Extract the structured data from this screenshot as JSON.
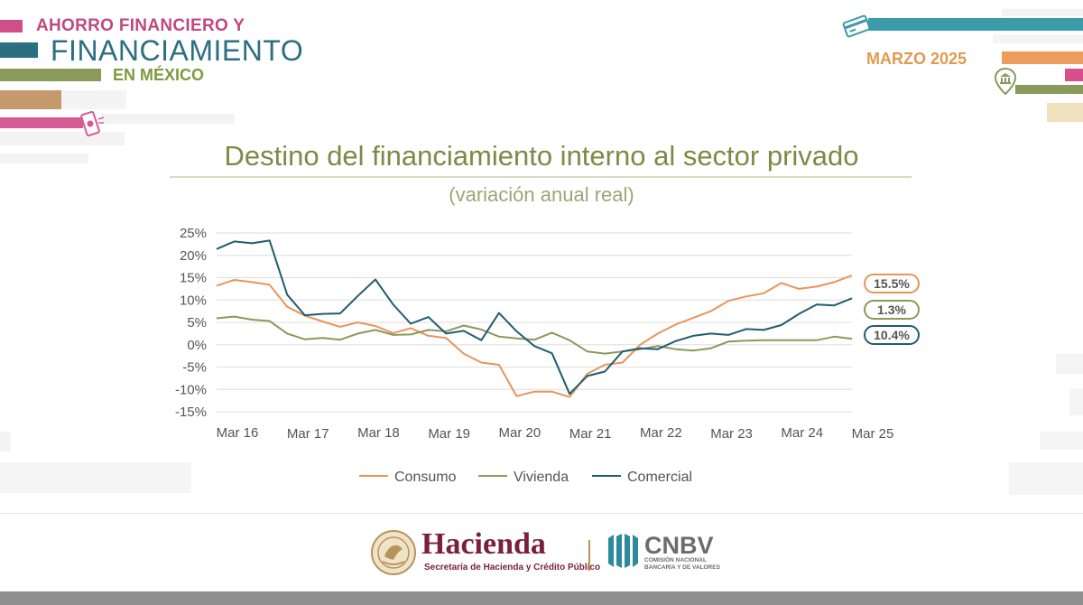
{
  "header": {
    "line1": "AHORRO FINANCIERO Y",
    "line2": "FINANCIAMIENTO",
    "line3": "EN MÉXICO",
    "date": "MARZO 2025"
  },
  "chart_data": {
    "type": "line",
    "title": "Destino del financiamiento interno al sector privado",
    "subtitle": "(variación anual real)",
    "xlabel": "",
    "ylabel": "",
    "ylim": [
      -15,
      25
    ],
    "yticks": [
      25,
      20,
      15,
      10,
      5,
      0,
      -5,
      -10,
      -15
    ],
    "ytick_labels": [
      "25%",
      "20%",
      "15%",
      "10%",
      "5%",
      "0%",
      "-5%",
      "-10%",
      "-15%"
    ],
    "xtick_labels": [
      "Mar 16",
      "Mar 17",
      "Mar 18",
      "Mar 19",
      "Mar 20",
      "Mar 21",
      "Mar 22",
      "Mar 23",
      "Mar 24",
      "Mar 25"
    ],
    "x_period": "quarterly",
    "grid": "horizontal",
    "legend": "bottom",
    "series": [
      {
        "name": "Consumo",
        "color": "#e8955a",
        "end_label": "15.5%",
        "values": [
          13.2,
          14.5,
          14.0,
          13.4,
          8.5,
          6.5,
          5.2,
          4.0,
          5.0,
          4.2,
          2.6,
          3.7,
          2.0,
          1.5,
          -2.0,
          -4.0,
          -4.5,
          -11.5,
          -10.5,
          -10.5,
          -11.7,
          -6.5,
          -4.5,
          -4.0,
          0.0,
          2.5,
          4.5,
          6.0,
          7.5,
          9.8,
          10.8,
          11.5,
          13.8,
          12.5,
          13.0,
          14.0,
          15.5
        ]
      },
      {
        "name": "Vivienda",
        "color": "#8a9a5b",
        "end_label": "1.3%",
        "values": [
          5.9,
          6.3,
          5.6,
          5.3,
          2.5,
          1.2,
          1.5,
          1.1,
          2.5,
          3.3,
          2.2,
          2.3,
          3.3,
          3.0,
          4.3,
          3.4,
          1.8,
          1.4,
          1.1,
          2.7,
          1.0,
          -1.5,
          -2.0,
          -1.5,
          -1.0,
          -0.3,
          -1.0,
          -1.3,
          -0.8,
          0.7,
          0.9,
          1.0,
          1.0,
          1.0,
          1.0,
          1.8,
          1.3
        ]
      },
      {
        "name": "Comercial",
        "color": "#205d71",
        "end_label": "10.4%",
        "values": [
          21.4,
          23.1,
          22.7,
          23.3,
          11.2,
          6.6,
          6.9,
          7.0,
          10.9,
          14.6,
          9.0,
          4.7,
          6.2,
          2.5,
          3.1,
          1.0,
          7.1,
          3.0,
          -0.3,
          -1.9,
          -11.0,
          -7.0,
          -6.0,
          -1.5,
          -0.8,
          -1.0,
          0.8,
          2.0,
          2.5,
          2.2,
          3.5,
          3.3,
          4.4,
          6.9,
          9.0,
          8.8,
          10.4
        ]
      }
    ]
  },
  "footer": {
    "hacienda_name": "Hacienda",
    "hacienda_sub": "Secretaría de Hacienda y Crédito Público",
    "cnbv_name": "CNBV",
    "cnbv_sub1": "COMISIÓN NACIONAL",
    "cnbv_sub2": "BANCARIA Y DE VALORES"
  },
  "icons": {
    "card": "credit-card-icon",
    "phone": "mobile-phone-icon",
    "bank": "bank-pin-icon",
    "seal": "national-seal-icon",
    "cnbv_mark": "cnbv-logo-icon"
  },
  "colors": {
    "pink": "#c0497f",
    "teal": "#2c6f80",
    "olive": "#8a9a5b",
    "orange": "#e8955a",
    "maroon": "#7a1f3d"
  }
}
